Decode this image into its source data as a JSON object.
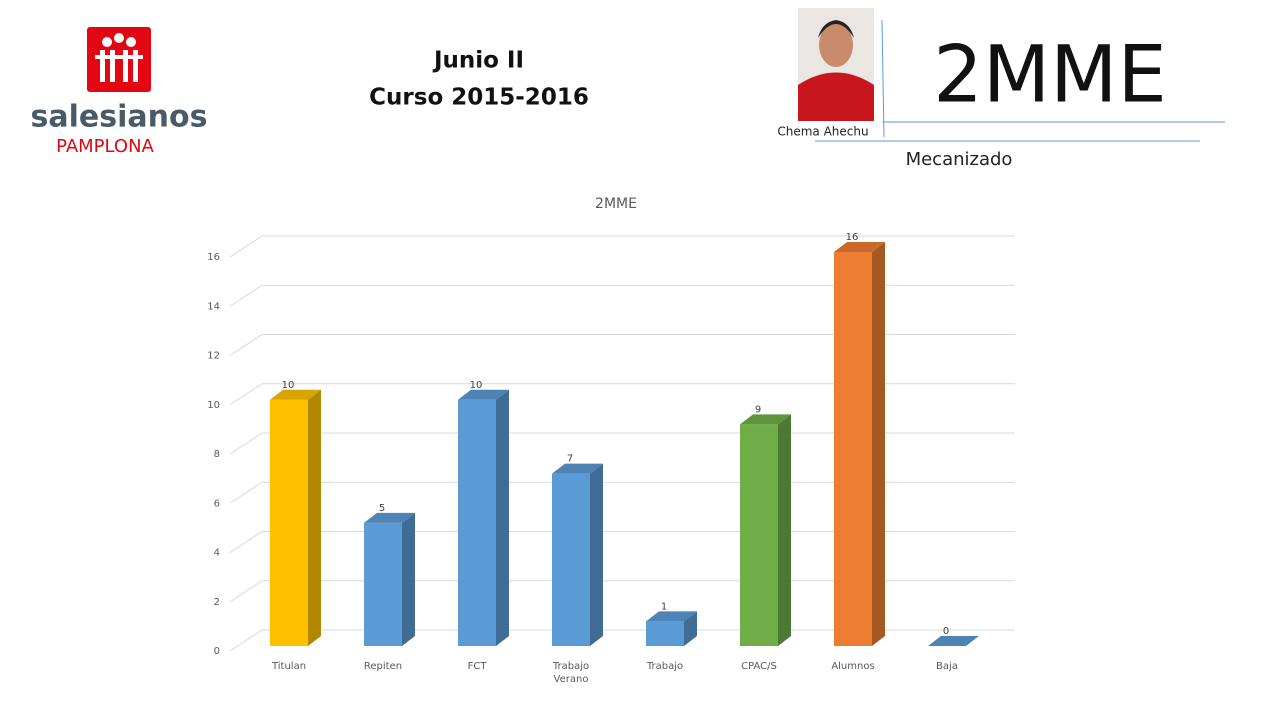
{
  "header": {
    "title": "Junio II",
    "subtitle": "Curso 2015-2016",
    "group": "2MME",
    "teacher": "Chema Ahechu",
    "department": "Mecanizado"
  },
  "logo": {
    "name": "salesianos",
    "city": "PAMPLONA"
  },
  "chart_data": {
    "type": "bar",
    "title": "2MME",
    "categories": [
      "Titulan",
      "Repiten",
      "FCT",
      "Trabajo Verano",
      "Trabajo",
      "CPAC/S",
      "Alumnos",
      "Baja"
    ],
    "values": [
      10,
      5,
      10,
      7,
      1,
      9,
      16,
      0
    ],
    "colors": [
      "#ffc000",
      "#5b9bd5",
      "#5b9bd5",
      "#5b9bd5",
      "#5b9bd5",
      "#70ad47",
      "#ed7d31",
      "#5b9bd5"
    ],
    "ylim": [
      0,
      16
    ],
    "yticks": [
      0,
      2,
      4,
      6,
      8,
      10,
      12,
      14,
      16
    ],
    "grid": true,
    "data_labels": true
  }
}
